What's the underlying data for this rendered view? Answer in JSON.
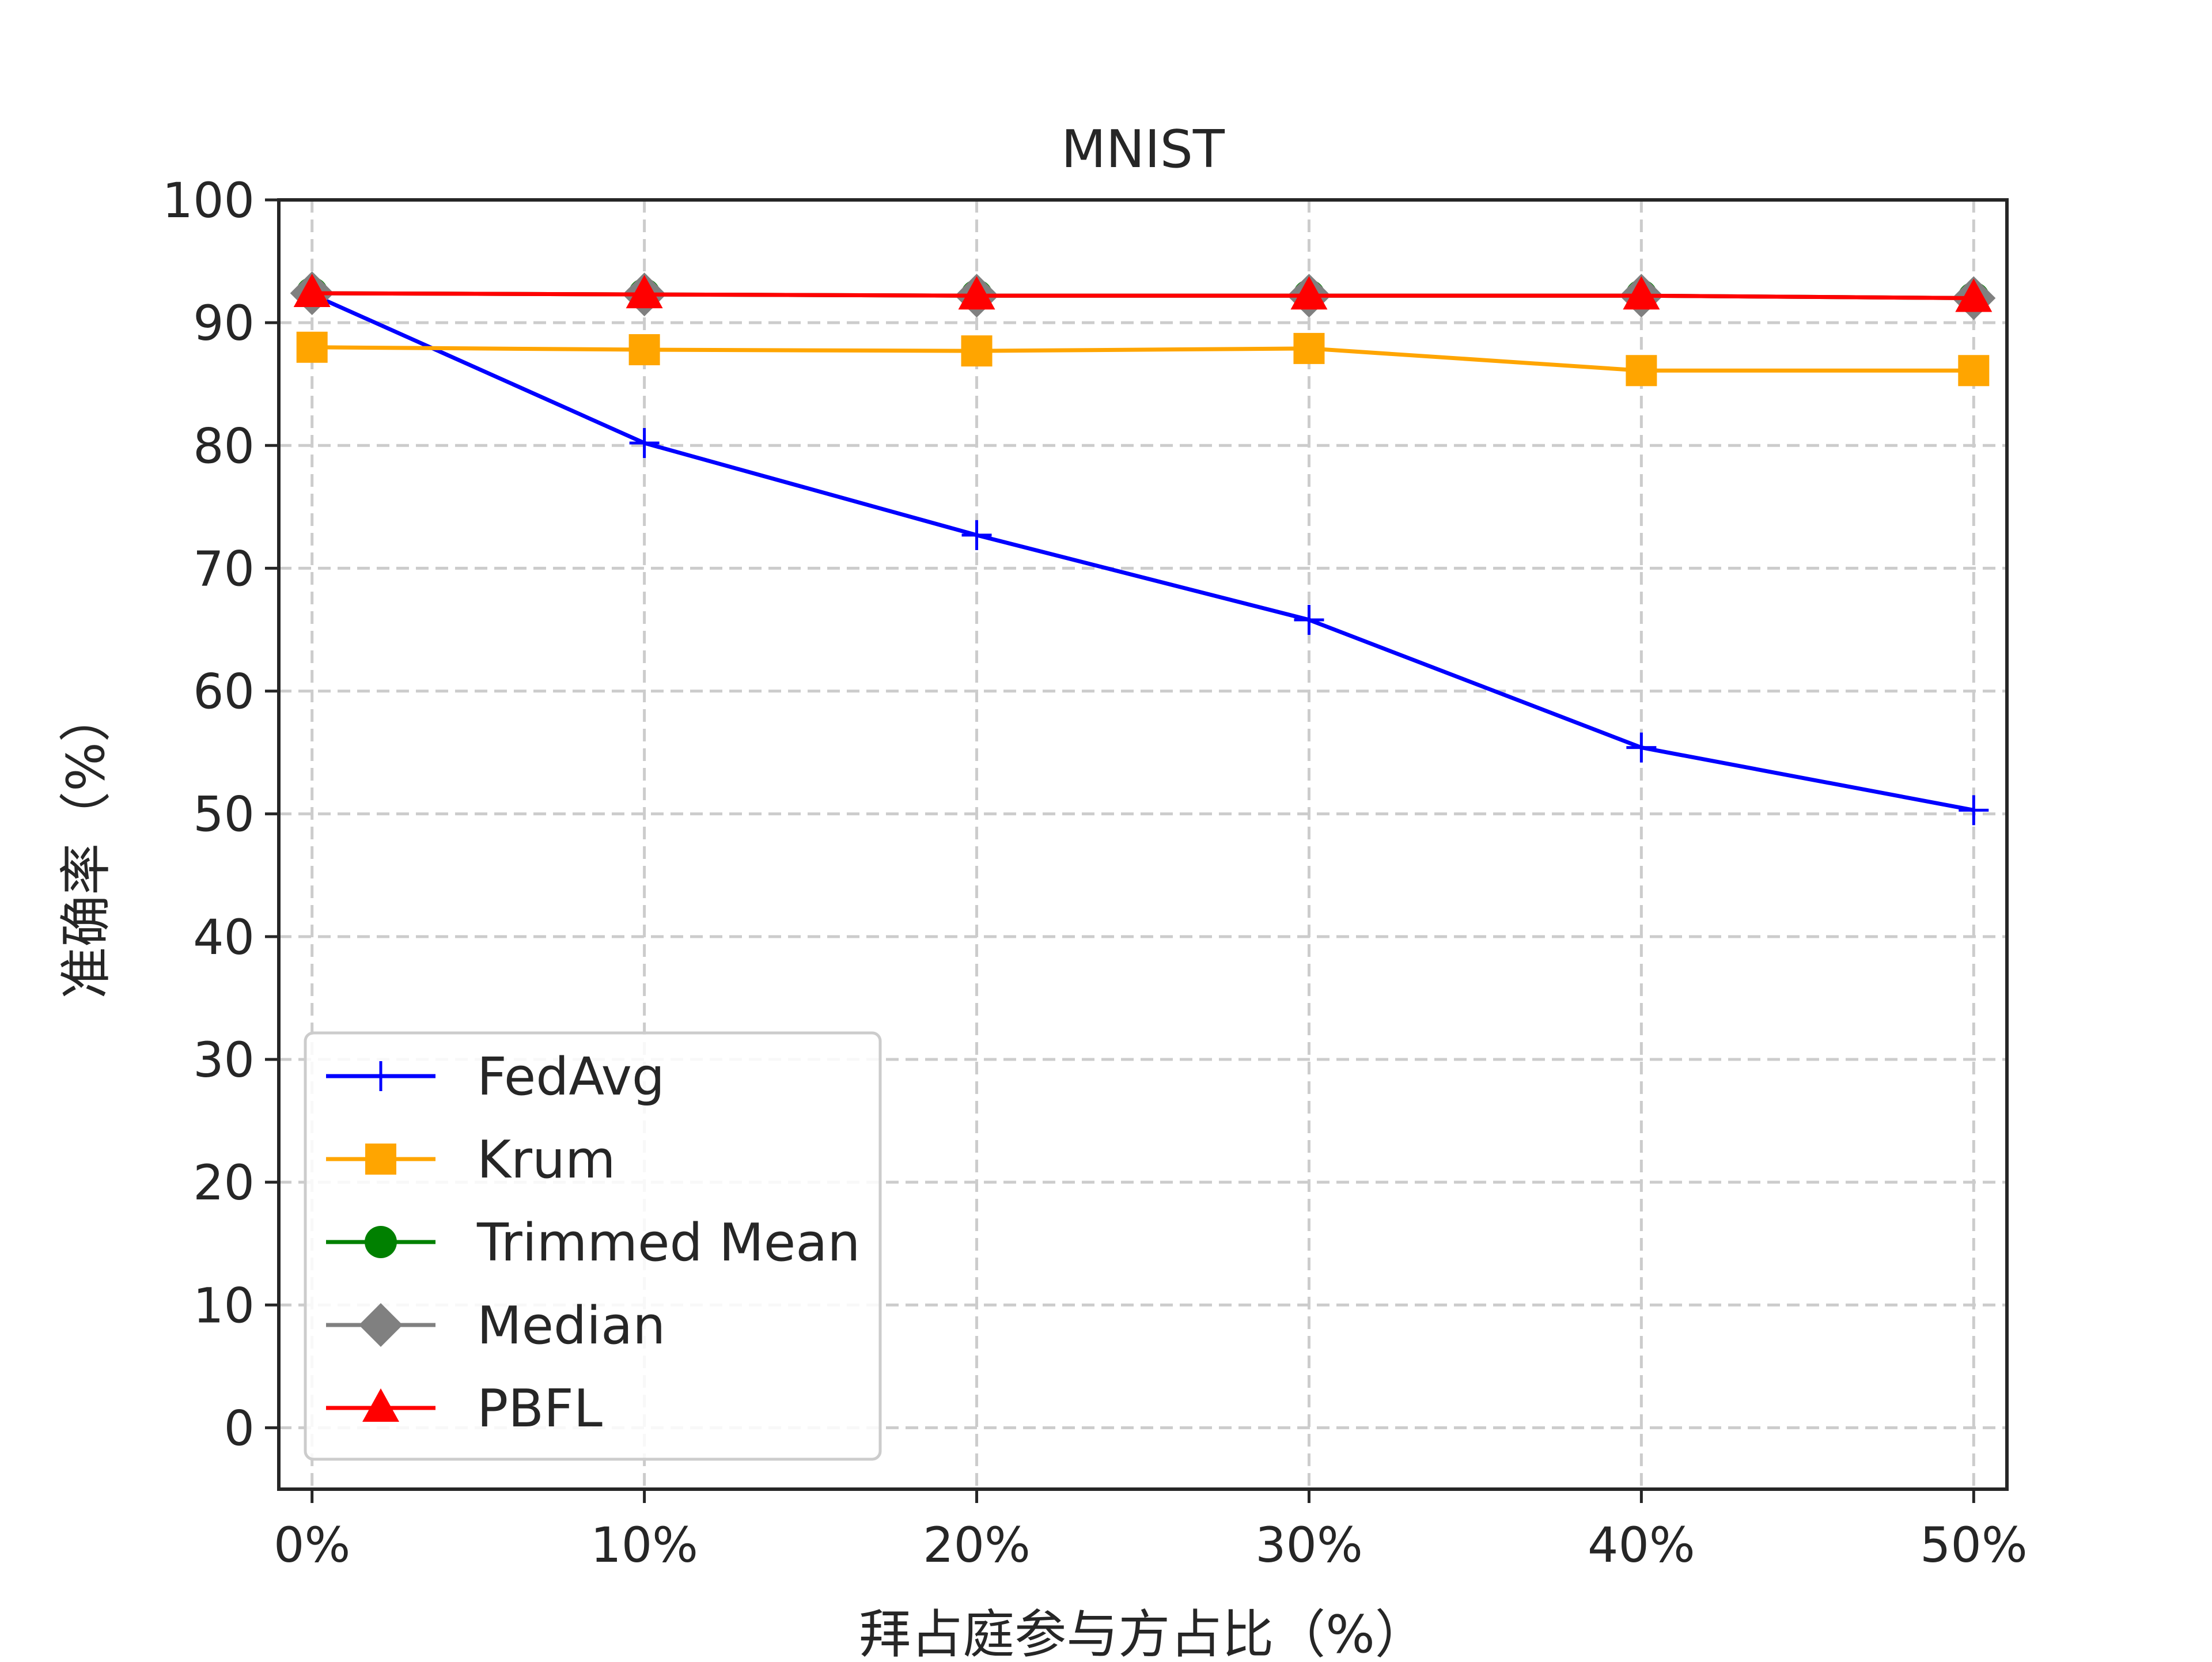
{
  "chart_data": {
    "type": "line",
    "title": "MNIST",
    "xlabel": "拜占庭参与方占比（%）",
    "ylabel": "准确率（%）",
    "categories": [
      "0%",
      "10%",
      "20%",
      "30%",
      "40%",
      "50%"
    ],
    "x": [
      0,
      10,
      20,
      30,
      40,
      50
    ],
    "ylim": [
      -5,
      100
    ],
    "yticks": [
      0,
      10,
      20,
      30,
      40,
      50,
      60,
      70,
      80,
      90,
      100
    ],
    "grid": true,
    "grid_style": "dashed",
    "legend_position": "lower-left",
    "series": [
      {
        "name": "FedAvg",
        "color": "#0000ff",
        "marker": "plus",
        "values": [
          92.3,
          80.2,
          72.7,
          65.8,
          55.4,
          50.3
        ]
      },
      {
        "name": "Krum",
        "color": "#ffa500",
        "marker": "square",
        "values": [
          88.0,
          87.8,
          87.7,
          87.9,
          86.1,
          86.1
        ]
      },
      {
        "name": "Trimmed Mean",
        "color": "#008000",
        "marker": "circle",
        "values": [
          92.4,
          92.3,
          92.2,
          92.2,
          92.2,
          92.0
        ]
      },
      {
        "name": "Median",
        "color": "#808080",
        "marker": "diamond",
        "values": [
          92.4,
          92.3,
          92.2,
          92.2,
          92.2,
          92.0
        ]
      },
      {
        "name": "PBFL",
        "color": "#ff0000",
        "marker": "triangle",
        "values": [
          92.4,
          92.3,
          92.2,
          92.2,
          92.2,
          92.0
        ]
      }
    ]
  }
}
